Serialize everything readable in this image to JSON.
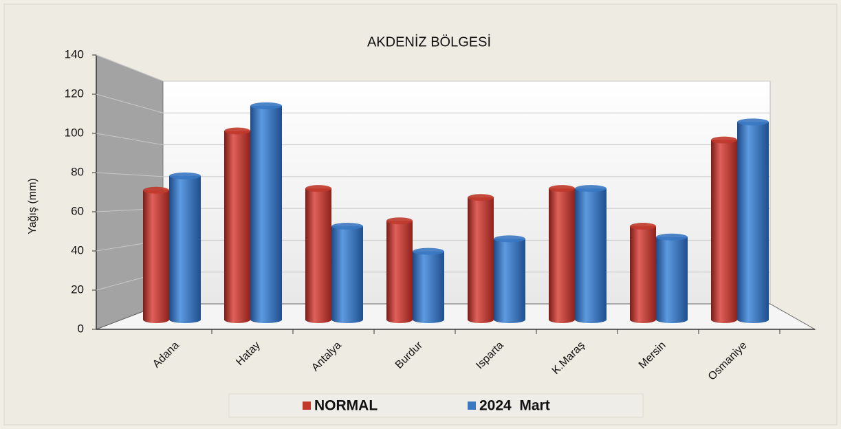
{
  "chart_data": {
    "type": "bar",
    "title": "AKDENİZ BÖLGESİ",
    "y_label": "Yağış (mm)",
    "categories": [
      "Adana",
      "Hatay",
      "Antalya",
      "Burdur",
      "Isparta",
      "K.Maraş",
      "Mersin",
      "Osmaniye"
    ],
    "series": [
      {
        "name": "NORMAL",
        "color": "#c0392b",
        "values": [
          72,
          105,
          73,
          55,
          68,
          73,
          52,
          100
        ]
      },
      {
        "name": "2024  Mart",
        "color": "#3a78c2",
        "values": [
          80,
          119,
          52,
          38,
          45,
          73,
          46,
          110
        ]
      }
    ],
    "ylim": [
      0,
      140
    ],
    "yticks": [
      0,
      20,
      40,
      60,
      80,
      100,
      120,
      140
    ],
    "grid": true,
    "legend": "bottom"
  }
}
